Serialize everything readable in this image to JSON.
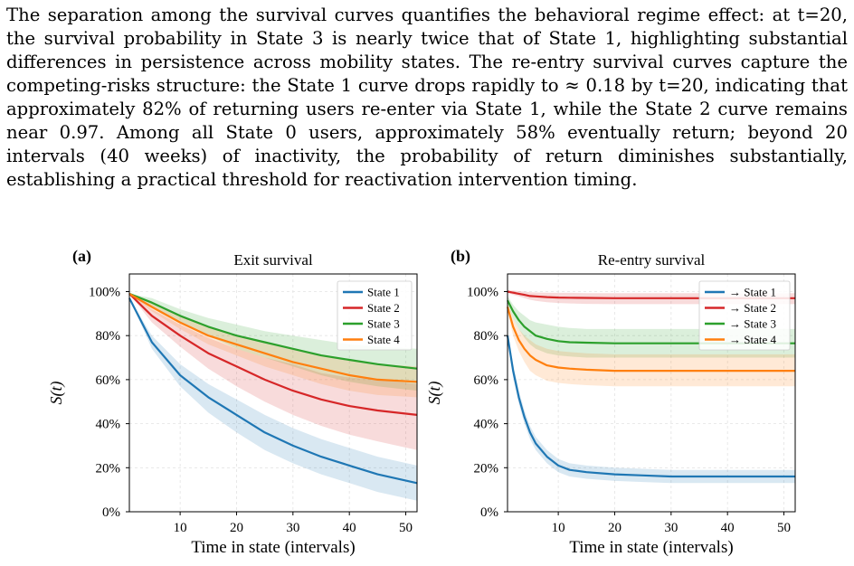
{
  "paragraph": "The separation among the survival curves quantifies the behavioral regime effect: at t=20, the survival probability in State 3 is nearly twice that of State 1, highlighting substantial differences in persistence across mobility states. The re-entry survival curves capture the competing-risks structure: the State 1 curve drops rapidly to ≈ 0.18 by t=20, indicating that approximately 82% of returning users re-enter via State 1, while the State 2 curve remains near 0.97. Among all State 0 users, approximately 58% eventually return; beyond 20 intervals (40 weeks) of inactivity, the probability of return diminishes substantially, establishing a practical threshold for reactivation intervention timing.",
  "chart_data": [
    {
      "type": "line",
      "panel_label": "(a)",
      "title": "Exit survival",
      "xlabel": "Time in state (intervals)",
      "ylabel": "S(t)",
      "xlim": [
        1,
        52
      ],
      "ylim": [
        0,
        1.08
      ],
      "xticks": [
        "10",
        "20",
        "30",
        "40",
        "50"
      ],
      "yticks": [
        "0%",
        "20%",
        "40%",
        "60%",
        "80%",
        "100%"
      ],
      "grid": true,
      "legend_position": "top-right",
      "x": [
        1,
        5,
        10,
        15,
        20,
        25,
        30,
        35,
        40,
        45,
        52
      ],
      "series": [
        {
          "name": "State 1",
          "color": "#1f77b4",
          "values": [
            0.97,
            0.77,
            0.62,
            0.52,
            0.44,
            0.36,
            0.3,
            0.25,
            0.21,
            0.17,
            0.13
          ],
          "lower": [
            0.97,
            0.74,
            0.57,
            0.45,
            0.36,
            0.28,
            0.22,
            0.17,
            0.13,
            0.09,
            0.05
          ],
          "upper": [
            0.97,
            0.8,
            0.67,
            0.58,
            0.51,
            0.44,
            0.38,
            0.33,
            0.29,
            0.25,
            0.21
          ]
        },
        {
          "name": "State 2",
          "color": "#d62728",
          "values": [
            0.99,
            0.89,
            0.8,
            0.72,
            0.66,
            0.6,
            0.55,
            0.51,
            0.48,
            0.46,
            0.44
          ],
          "lower": [
            0.99,
            0.86,
            0.75,
            0.65,
            0.57,
            0.5,
            0.44,
            0.39,
            0.35,
            0.32,
            0.28
          ],
          "upper": [
            0.99,
            0.92,
            0.85,
            0.79,
            0.74,
            0.7,
            0.67,
            0.63,
            0.61,
            0.6,
            0.58
          ]
        },
        {
          "name": "State 3",
          "color": "#2ca02c",
          "values": [
            0.99,
            0.95,
            0.89,
            0.84,
            0.8,
            0.77,
            0.74,
            0.71,
            0.69,
            0.67,
            0.65
          ],
          "lower": [
            0.99,
            0.93,
            0.86,
            0.8,
            0.74,
            0.7,
            0.66,
            0.62,
            0.59,
            0.57,
            0.55
          ],
          "upper": [
            0.99,
            0.97,
            0.92,
            0.88,
            0.85,
            0.82,
            0.8,
            0.78,
            0.76,
            0.75,
            0.74
          ]
        },
        {
          "name": "State 4",
          "color": "#ff7f0e",
          "values": [
            0.99,
            0.93,
            0.86,
            0.8,
            0.76,
            0.72,
            0.68,
            0.65,
            0.62,
            0.6,
            0.59
          ],
          "lower": [
            0.99,
            0.91,
            0.83,
            0.76,
            0.71,
            0.66,
            0.62,
            0.58,
            0.55,
            0.53,
            0.52
          ],
          "upper": [
            0.99,
            0.95,
            0.89,
            0.84,
            0.8,
            0.77,
            0.74,
            0.71,
            0.69,
            0.67,
            0.66
          ]
        }
      ]
    },
    {
      "type": "line",
      "panel_label": "(b)",
      "title": "Re-entry survival",
      "xlabel": "Time in state (intervals)",
      "ylabel": "S(t)",
      "xlim": [
        1,
        52
      ],
      "ylim": [
        0,
        1.08
      ],
      "xticks": [
        "10",
        "20",
        "30",
        "40",
        "50"
      ],
      "yticks": [
        "0%",
        "20%",
        "40%",
        "60%",
        "80%",
        "100%"
      ],
      "grid": true,
      "legend_position": "top-right",
      "x": [
        1,
        2,
        3,
        4,
        5,
        6,
        8,
        10,
        12,
        15,
        20,
        25,
        30,
        40,
        52
      ],
      "series": [
        {
          "name": "→ State 1",
          "color": "#1f77b4",
          "values": [
            0.8,
            0.64,
            0.52,
            0.43,
            0.36,
            0.31,
            0.25,
            0.21,
            0.19,
            0.18,
            0.17,
            0.165,
            0.16,
            0.16,
            0.16
          ],
          "lower": [
            0.78,
            0.61,
            0.49,
            0.4,
            0.33,
            0.28,
            0.22,
            0.18,
            0.16,
            0.15,
            0.14,
            0.135,
            0.13,
            0.13,
            0.13
          ],
          "upper": [
            0.82,
            0.67,
            0.55,
            0.46,
            0.39,
            0.34,
            0.28,
            0.24,
            0.22,
            0.21,
            0.2,
            0.195,
            0.19,
            0.19,
            0.19
          ]
        },
        {
          "name": "→ State 2",
          "color": "#d62728",
          "values": [
            1.0,
            0.995,
            0.99,
            0.985,
            0.98,
            0.978,
            0.975,
            0.973,
            0.972,
            0.971,
            0.97,
            0.97,
            0.97,
            0.97,
            0.97
          ],
          "lower": [
            0.995,
            0.985,
            0.978,
            0.97,
            0.963,
            0.958,
            0.952,
            0.948,
            0.946,
            0.944,
            0.943,
            0.943,
            0.943,
            0.943,
            0.943
          ],
          "upper": [
            1.005,
            1.005,
            1.002,
            1.0,
            0.997,
            0.996,
            0.995,
            0.994,
            0.994,
            0.993,
            0.993,
            0.993,
            0.993,
            0.993,
            0.993
          ]
        },
        {
          "name": "→ State 3",
          "color": "#2ca02c",
          "values": [
            0.96,
            0.91,
            0.87,
            0.84,
            0.82,
            0.8,
            0.785,
            0.775,
            0.77,
            0.768,
            0.765,
            0.765,
            0.765,
            0.765,
            0.765
          ],
          "lower": [
            0.94,
            0.88,
            0.83,
            0.79,
            0.76,
            0.74,
            0.72,
            0.71,
            0.705,
            0.7,
            0.7,
            0.7,
            0.7,
            0.7,
            0.7
          ],
          "upper": [
            0.98,
            0.94,
            0.91,
            0.89,
            0.87,
            0.86,
            0.85,
            0.84,
            0.835,
            0.83,
            0.83,
            0.83,
            0.83,
            0.83,
            0.83
          ]
        },
        {
          "name": "→ State 4",
          "color": "#ff7f0e",
          "values": [
            0.93,
            0.84,
            0.78,
            0.74,
            0.71,
            0.69,
            0.665,
            0.655,
            0.65,
            0.645,
            0.64,
            0.64,
            0.64,
            0.64,
            0.64
          ],
          "lower": [
            0.91,
            0.8,
            0.73,
            0.68,
            0.64,
            0.62,
            0.595,
            0.585,
            0.58,
            0.575,
            0.57,
            0.57,
            0.57,
            0.57,
            0.57
          ],
          "upper": [
            0.95,
            0.88,
            0.83,
            0.8,
            0.78,
            0.76,
            0.74,
            0.73,
            0.725,
            0.72,
            0.715,
            0.715,
            0.715,
            0.715,
            0.715
          ]
        }
      ]
    }
  ]
}
